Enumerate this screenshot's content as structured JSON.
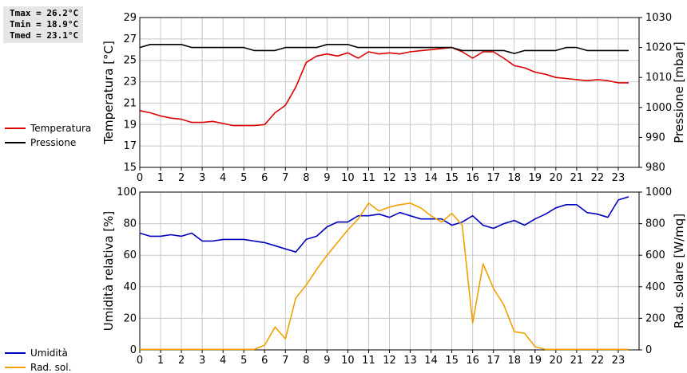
{
  "stats": {
    "tmax": "Tmax = 26.2°C",
    "tmin": "Tmin = 18.9°C",
    "tmed": "Tmed = 23.1°C"
  },
  "colors": {
    "temperature": "#dd0000",
    "pressure": "#000000",
    "humidity": "#0000c0",
    "radiation": "#f0a000",
    "grid": "#c8c8c8"
  },
  "chart_data": [
    {
      "type": "line",
      "xlabel": "",
      "ylabel_left": "Temperatura [°C]",
      "ylabel_right": "Pressione [mbar]",
      "xlim": [
        0,
        24
      ],
      "ylim_left": [
        15,
        29
      ],
      "ylim_right": [
        980,
        1030
      ],
      "xticks": [
        0,
        1,
        2,
        3,
        4,
        5,
        6,
        7,
        8,
        9,
        10,
        11,
        12,
        13,
        14,
        15,
        16,
        17,
        18,
        19,
        20,
        21,
        22,
        23
      ],
      "yticks_left": [
        15,
        17,
        19,
        21,
        23,
        25,
        27,
        29
      ],
      "yticks_right": [
        980,
        990,
        1000,
        1010,
        1020,
        1030
      ],
      "grid": true,
      "legend_position": "left",
      "series": [
        {
          "name": "Temperatura",
          "axis": "left",
          "color_key": "temperature",
          "x": [
            0,
            0.5,
            1,
            1.5,
            2,
            2.5,
            3,
            3.5,
            4,
            4.5,
            5,
            5.5,
            6,
            6.5,
            7,
            7.5,
            8,
            8.5,
            9,
            9.5,
            10,
            10.5,
            11,
            11.5,
            12,
            12.5,
            13,
            13.5,
            14,
            14.5,
            15,
            15.5,
            16,
            16.5,
            17,
            17.5,
            18,
            18.5,
            19,
            19.5,
            20,
            20.5,
            21,
            21.5,
            22,
            22.5,
            23,
            23.5
          ],
          "values": [
            20.3,
            20.1,
            19.8,
            19.6,
            19.5,
            19.2,
            19.2,
            19.3,
            19.1,
            18.9,
            18.9,
            18.9,
            19.0,
            20.1,
            20.8,
            22.5,
            24.8,
            25.4,
            25.6,
            25.4,
            25.7,
            25.2,
            25.8,
            25.6,
            25.7,
            25.6,
            25.8,
            25.9,
            26.0,
            26.1,
            26.2,
            25.8,
            25.2,
            25.8,
            25.8,
            25.2,
            24.5,
            24.3,
            23.9,
            23.7,
            23.4,
            23.3,
            23.2,
            23.1,
            23.2,
            23.1,
            22.9,
            22.9
          ]
        },
        {
          "name": "Pressione",
          "axis": "right",
          "color_key": "pressure",
          "x": [
            0,
            0.5,
            1,
            1.5,
            2,
            2.5,
            3,
            3.5,
            4,
            4.5,
            5,
            5.5,
            6,
            6.5,
            7,
            7.5,
            8,
            8.5,
            9,
            9.5,
            10,
            10.5,
            11,
            11.5,
            12,
            12.5,
            13,
            13.5,
            14,
            14.5,
            15,
            15.5,
            16,
            16.5,
            17,
            17.5,
            18,
            18.5,
            19,
            19.5,
            20,
            20.5,
            21,
            21.5,
            22,
            22.5,
            23,
            23.5
          ],
          "values": [
            1020,
            1021,
            1021,
            1021,
            1021,
            1020,
            1020,
            1020,
            1020,
            1020,
            1020,
            1019,
            1019,
            1019,
            1020,
            1020,
            1020,
            1020,
            1021,
            1021,
            1021,
            1020,
            1020,
            1020,
            1020,
            1020,
            1020,
            1020,
            1020,
            1020,
            1020,
            1019,
            1019,
            1019,
            1019,
            1019,
            1018,
            1019,
            1019,
            1019,
            1019,
            1020,
            1020,
            1019,
            1019,
            1019,
            1019,
            1019
          ]
        }
      ]
    },
    {
      "type": "line",
      "xlabel": "",
      "ylabel_left": "Umidità relativa [%]",
      "ylabel_right": "Rad. solare [W/mq]",
      "xlim": [
        0,
        24
      ],
      "ylim_left": [
        0,
        100
      ],
      "ylim_right": [
        0,
        1000
      ],
      "xticks": [
        0,
        1,
        2,
        3,
        4,
        5,
        6,
        7,
        8,
        9,
        10,
        11,
        12,
        13,
        14,
        15,
        16,
        17,
        18,
        19,
        20,
        21,
        22,
        23
      ],
      "yticks_left": [
        0,
        20,
        40,
        60,
        80,
        100
      ],
      "yticks_right": [
        0,
        200,
        400,
        600,
        800,
        1000
      ],
      "grid": true,
      "legend_position": "left",
      "series": [
        {
          "name": "Umidità",
          "axis": "left",
          "color_key": "humidity",
          "x": [
            0,
            0.5,
            1,
            1.5,
            2,
            2.5,
            3,
            3.5,
            4,
            4.5,
            5,
            5.5,
            6,
            6.5,
            7,
            7.5,
            8,
            8.5,
            9,
            9.5,
            10,
            10.5,
            11,
            11.5,
            12,
            12.5,
            13,
            13.5,
            14,
            14.5,
            15,
            15.5,
            16,
            16.5,
            17,
            17.5,
            18,
            18.5,
            19,
            19.5,
            20,
            20.5,
            21,
            21.5,
            22,
            22.5,
            23,
            23.5
          ],
          "values": [
            74,
            72,
            72,
            73,
            72,
            74,
            69,
            69,
            70,
            70,
            70,
            69,
            68,
            66,
            64,
            62,
            70,
            72,
            78,
            81,
            81,
            85,
            85,
            86,
            84,
            87,
            85,
            83,
            83,
            83,
            79,
            81,
            85,
            79,
            77,
            80,
            82,
            79,
            83,
            86,
            90,
            92,
            92,
            87,
            86,
            84,
            95,
            97
          ]
        },
        {
          "name": "Rad. sol.",
          "axis": "right",
          "color_key": "radiation",
          "x": [
            0,
            0.5,
            1,
            1.5,
            2,
            2.5,
            3,
            3.5,
            4,
            4.5,
            5,
            5.5,
            6,
            6.5,
            7,
            7.5,
            8,
            8.5,
            9,
            9.5,
            10,
            10.5,
            11,
            11.5,
            12,
            12.5,
            13,
            13.5,
            14,
            14.5,
            15,
            15.5,
            16,
            16.5,
            17,
            17.5,
            18,
            18.5,
            19,
            19.5,
            20,
            20.5,
            21,
            21.5,
            22,
            22.5,
            23,
            23.5
          ],
          "values": [
            3,
            3,
            3,
            3,
            3,
            3,
            3,
            3,
            3,
            3,
            3,
            3,
            30,
            145,
            70,
            330,
            410,
            510,
            600,
            680,
            760,
            830,
            930,
            880,
            905,
            920,
            930,
            900,
            850,
            810,
            865,
            790,
            170,
            545,
            390,
            285,
            115,
            105,
            20,
            3,
            3,
            3,
            3,
            3,
            3,
            3,
            3,
            3
          ]
        }
      ]
    }
  ]
}
